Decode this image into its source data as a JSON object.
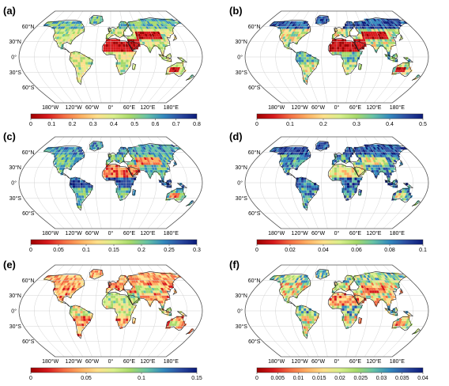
{
  "panels": [
    {
      "label": "(a)",
      "ticks": [
        "0",
        "0.1",
        "0.2",
        "0.3",
        "0.4",
        "0.5",
        "0.6",
        "0.7",
        "0.8"
      ],
      "scheme": "spectral_low"
    },
    {
      "label": "(b)",
      "ticks": [
        "0",
        "0.1",
        "0.2",
        "0.3",
        "0.4",
        "0.5"
      ],
      "scheme": "spectral_high"
    },
    {
      "label": "(c)",
      "ticks": [
        "0",
        "0.05",
        "0.1",
        "0.15",
        "0.2",
        "0.25",
        "0.3"
      ],
      "scheme": "cool"
    },
    {
      "label": "(d)",
      "ticks": [
        "0",
        "0.02",
        "0.04",
        "0.06",
        "0.08",
        "0.1"
      ],
      "scheme": "cool_dark"
    },
    {
      "label": "(e)",
      "ticks": [
        "0",
        "0.05",
        "0.1",
        "0.15"
      ],
      "scheme": "warm"
    },
    {
      "label": "(f)",
      "ticks": [
        "0",
        "0.005",
        "0.01",
        "0.015",
        "0.02",
        "0.025",
        "0.03",
        "0.035",
        "0.04"
      ],
      "scheme": "mixed"
    }
  ],
  "lon_labels": [
    "180°W",
    "120°W",
    "60°W",
    "0°",
    "60°E",
    "120°E",
    "180°E"
  ],
  "lat_labels": [
    "60°N",
    "30°N",
    "0°",
    "30°S",
    "60°S"
  ],
  "colorbar_colors": [
    "#9e0000",
    "#d7191c",
    "#f46d43",
    "#fdae61",
    "#fee08b",
    "#d9ef8b",
    "#a6d96a",
    "#66c2a5",
    "#3288bd",
    "#2b4ba0",
    "#0a1a7a"
  ],
  "land_outline_color": "#1a1a1a",
  "ocean_color": "#ffffff",
  "graticule_color": "#c8c8c8"
}
